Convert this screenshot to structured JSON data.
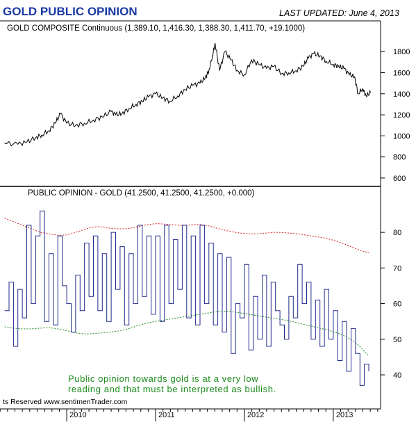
{
  "header": {
    "title": "GOLD PUBLIC OPINION",
    "last_updated": "LAST UPDATED:  June 4, 2013"
  },
  "footer": {
    "copyright": "ts Reserved  www.sentimenTrader.com"
  },
  "annotation": {
    "line1": "Public opinion towards gold is at a very low",
    "line2": "reading and that must be interpreted as bullish."
  },
  "colors": {
    "title": "#1a3aa6",
    "price_line": "#000000",
    "opinion_line": "#1f2a8c",
    "upper_band": "#d42020",
    "lower_band": "#1a8a1a",
    "annotation": "#1a8a1a"
  },
  "chart_data": [
    {
      "type": "line",
      "title": "GOLD COMPOSITE Continuous (1,389.10, 1,416.30, 1,388.30, 1,411.70, +19.1000)",
      "x_ticks": [
        "2010",
        "2011",
        "2012",
        "2013"
      ],
      "y_ticks": [
        600,
        800,
        1000,
        1200,
        1400,
        1600,
        1800
      ],
      "ylim": [
        560,
        1960
      ],
      "x": [
        2009.3,
        2009.45,
        2009.55,
        2009.65,
        2009.72,
        2009.8,
        2009.87,
        2009.93,
        2010.0,
        2010.1,
        2010.2,
        2010.3,
        2010.4,
        2010.5,
        2010.55,
        2010.62,
        2010.7,
        2010.78,
        2010.85,
        2010.92,
        2011.0,
        2011.08,
        2011.16,
        2011.25,
        2011.33,
        2011.42,
        2011.5,
        2011.56,
        2011.6,
        2011.64,
        2011.67,
        2011.72,
        2011.78,
        2011.85,
        2011.92,
        2012.0,
        2012.08,
        2012.16,
        2012.25,
        2012.33,
        2012.42,
        2012.5,
        2012.58,
        2012.66,
        2012.72,
        2012.78,
        2012.85,
        2012.92,
        2013.0,
        2013.06,
        2013.12,
        2013.18,
        2013.24,
        2013.28,
        2013.33,
        2013.37,
        2013.42
      ],
      "series": [
        {
          "values": [
            930,
            920,
            940,
            985,
            1010,
            1050,
            1120,
            1210,
            1120,
            1100,
            1120,
            1150,
            1180,
            1230,
            1200,
            1210,
            1260,
            1300,
            1330,
            1370,
            1400,
            1360,
            1330,
            1380,
            1440,
            1480,
            1500,
            1550,
            1620,
            1760,
            1880,
            1620,
            1800,
            1720,
            1620,
            1580,
            1720,
            1680,
            1640,
            1660,
            1590,
            1600,
            1620,
            1660,
            1740,
            1780,
            1760,
            1710,
            1680,
            1660,
            1640,
            1580,
            1560,
            1400,
            1450,
            1380,
            1410
          ]
        }
      ]
    },
    {
      "type": "line",
      "title": "PUBLIC OPINION - GOLD (41.2500, 41.2500, 41.2500, +0.000)",
      "x_ticks": [
        "2010",
        "2011",
        "2012",
        "2013"
      ],
      "y_ticks": [
        40,
        50,
        60,
        70,
        80
      ],
      "ylim": [
        32,
        89
      ],
      "x": [
        2009.3,
        2009.35,
        2009.4,
        2009.45,
        2009.5,
        2009.55,
        2009.6,
        2009.65,
        2009.7,
        2009.75,
        2009.8,
        2009.85,
        2009.9,
        2009.95,
        2010.0,
        2010.05,
        2010.1,
        2010.15,
        2010.2,
        2010.25,
        2010.3,
        2010.35,
        2010.4,
        2010.45,
        2010.5,
        2010.55,
        2010.6,
        2010.65,
        2010.7,
        2010.75,
        2010.8,
        2010.85,
        2010.9,
        2010.95,
        2011.0,
        2011.05,
        2011.1,
        2011.15,
        2011.2,
        2011.25,
        2011.3,
        2011.35,
        2011.4,
        2011.45,
        2011.5,
        2011.55,
        2011.6,
        2011.65,
        2011.7,
        2011.75,
        2011.8,
        2011.85,
        2011.9,
        2011.95,
        2012.0,
        2012.05,
        2012.1,
        2012.15,
        2012.2,
        2012.25,
        2012.3,
        2012.35,
        2012.4,
        2012.45,
        2012.5,
        2012.55,
        2012.6,
        2012.65,
        2012.7,
        2012.75,
        2012.8,
        2012.85,
        2012.9,
        2012.95,
        2013.0,
        2013.05,
        2013.1,
        2013.15,
        2013.2,
        2013.25,
        2013.3,
        2013.35,
        2013.4
      ],
      "series": [
        {
          "name": "Public Opinion",
          "values": [
            58,
            66,
            48,
            64,
            56,
            82,
            60,
            79,
            86,
            55,
            74,
            54,
            79,
            65,
            60,
            52,
            68,
            58,
            77,
            62,
            79,
            58,
            74,
            55,
            80,
            64,
            76,
            54,
            74,
            60,
            82,
            62,
            79,
            57,
            79,
            55,
            82,
            60,
            78,
            64,
            82,
            56,
            79,
            54,
            82,
            60,
            77,
            54,
            74,
            52,
            73,
            46,
            60,
            56,
            71,
            47,
            62,
            50,
            68,
            48,
            66,
            58,
            54,
            50,
            62,
            56,
            71,
            60,
            66,
            50,
            61,
            48,
            64,
            50,
            58,
            44,
            55,
            41,
            53,
            46,
            37,
            43,
            41
          ]
        },
        {
          "name": "Upper band",
          "values": [
            84,
            83.5,
            83,
            82.5,
            82,
            81.5,
            81,
            80.5,
            80,
            79.8,
            79.6,
            79.4,
            79.2,
            79.2,
            79.3,
            79.6,
            80,
            80.4,
            80.8,
            81.2,
            81.5,
            81.6,
            81.5,
            81.3,
            81.1,
            81.0,
            81.0,
            81.0,
            81.1,
            81.3,
            81.6,
            81.9,
            82.1,
            82.3,
            82.4,
            82.4,
            82.3,
            82.2,
            82.1,
            82.0,
            82.0,
            82.0,
            82.1,
            82.2,
            82.2,
            82.0,
            81.8,
            81.5,
            81.1,
            80.8,
            80.5,
            80.2,
            80.0,
            79.8,
            79.7,
            79.6,
            79.6,
            79.6,
            79.7,
            79.8,
            79.9,
            80.0,
            80.0,
            79.9,
            79.8,
            79.7,
            79.6,
            79.4,
            79.2,
            79.0,
            78.8,
            78.6,
            78.4,
            78.1,
            77.8,
            77.4,
            77.0,
            76.5,
            76.0,
            75.5,
            75.0,
            74.6,
            74.3
          ]
        },
        {
          "name": "Lower band",
          "values": [
            53.5,
            53.3,
            53.1,
            53.0,
            52.9,
            52.9,
            52.9,
            53.0,
            53.1,
            53.2,
            53.2,
            53.1,
            52.9,
            52.7,
            52.4,
            52.1,
            51.8,
            51.6,
            51.5,
            51.5,
            51.6,
            51.7,
            51.8,
            51.9,
            52.0,
            52.2,
            52.4,
            52.7,
            53.0,
            53.4,
            53.8,
            54.2,
            54.5,
            54.8,
            55.0,
            55.2,
            55.4,
            55.6,
            55.8,
            56.0,
            56.2,
            56.4,
            56.6,
            56.8,
            57.0,
            57.2,
            57.4,
            57.6,
            57.7,
            57.8,
            57.8,
            57.7,
            57.6,
            57.4,
            57.2,
            57.0,
            56.8,
            56.6,
            56.4,
            56.2,
            56.0,
            55.8,
            55.6,
            55.4,
            55.2,
            54.9,
            54.6,
            54.3,
            54.0,
            53.7,
            53.4,
            53.1,
            52.8,
            52.5,
            52.1,
            51.7,
            51.2,
            50.6,
            49.9,
            49.0,
            47.9,
            46.6,
            45.3
          ]
        }
      ]
    }
  ]
}
